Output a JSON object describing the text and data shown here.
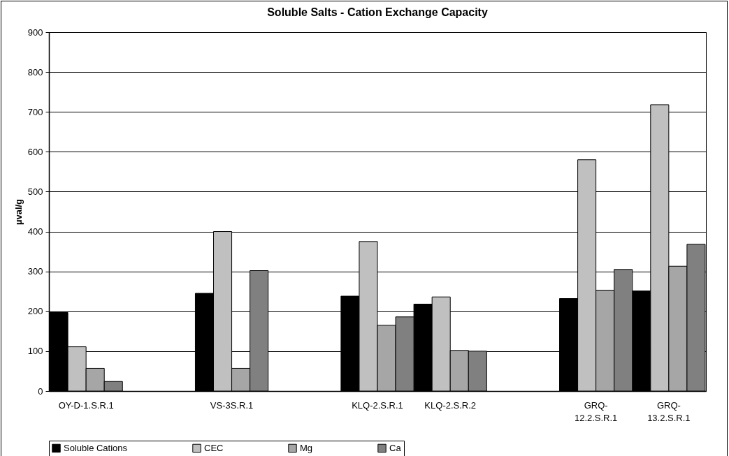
{
  "chart_data": {
    "type": "bar",
    "title": "Soluble Salts - Cation Exchange Capacity",
    "ylabel": "µval/g",
    "categories": [
      "OY-D-1.S.R.1",
      null,
      "VS-3S.R.1",
      null,
      "KLQ-2.S.R.1",
      "KLQ-2.S.R.2",
      null,
      "GRQ-12.2.S.R.1",
      "GRQ-13.2.S.R.1"
    ],
    "series": [
      {
        "name": "Soluble Cations",
        "color": "#000000",
        "values": [
          197,
          null,
          245,
          null,
          238,
          218,
          null,
          232,
          251
        ]
      },
      {
        "name": "CEC",
        "color": "#c0c0c0",
        "values": [
          111,
          null,
          400,
          null,
          375,
          236,
          null,
          580,
          718
        ]
      },
      {
        "name": "Mg",
        "color": "#a6a6a6",
        "values": [
          57,
          null,
          57,
          null,
          165,
          102,
          null,
          253,
          313
        ]
      },
      {
        "name": "Ca",
        "color": "#808080",
        "values": [
          24,
          null,
          302,
          null,
          186,
          100,
          null,
          305,
          368
        ]
      }
    ],
    "ylim": [
      0,
      900
    ],
    "yticks": [
      0,
      100,
      200,
      300,
      400,
      500,
      600,
      700,
      800,
      900
    ],
    "grid": "y",
    "legend": "bottom"
  }
}
